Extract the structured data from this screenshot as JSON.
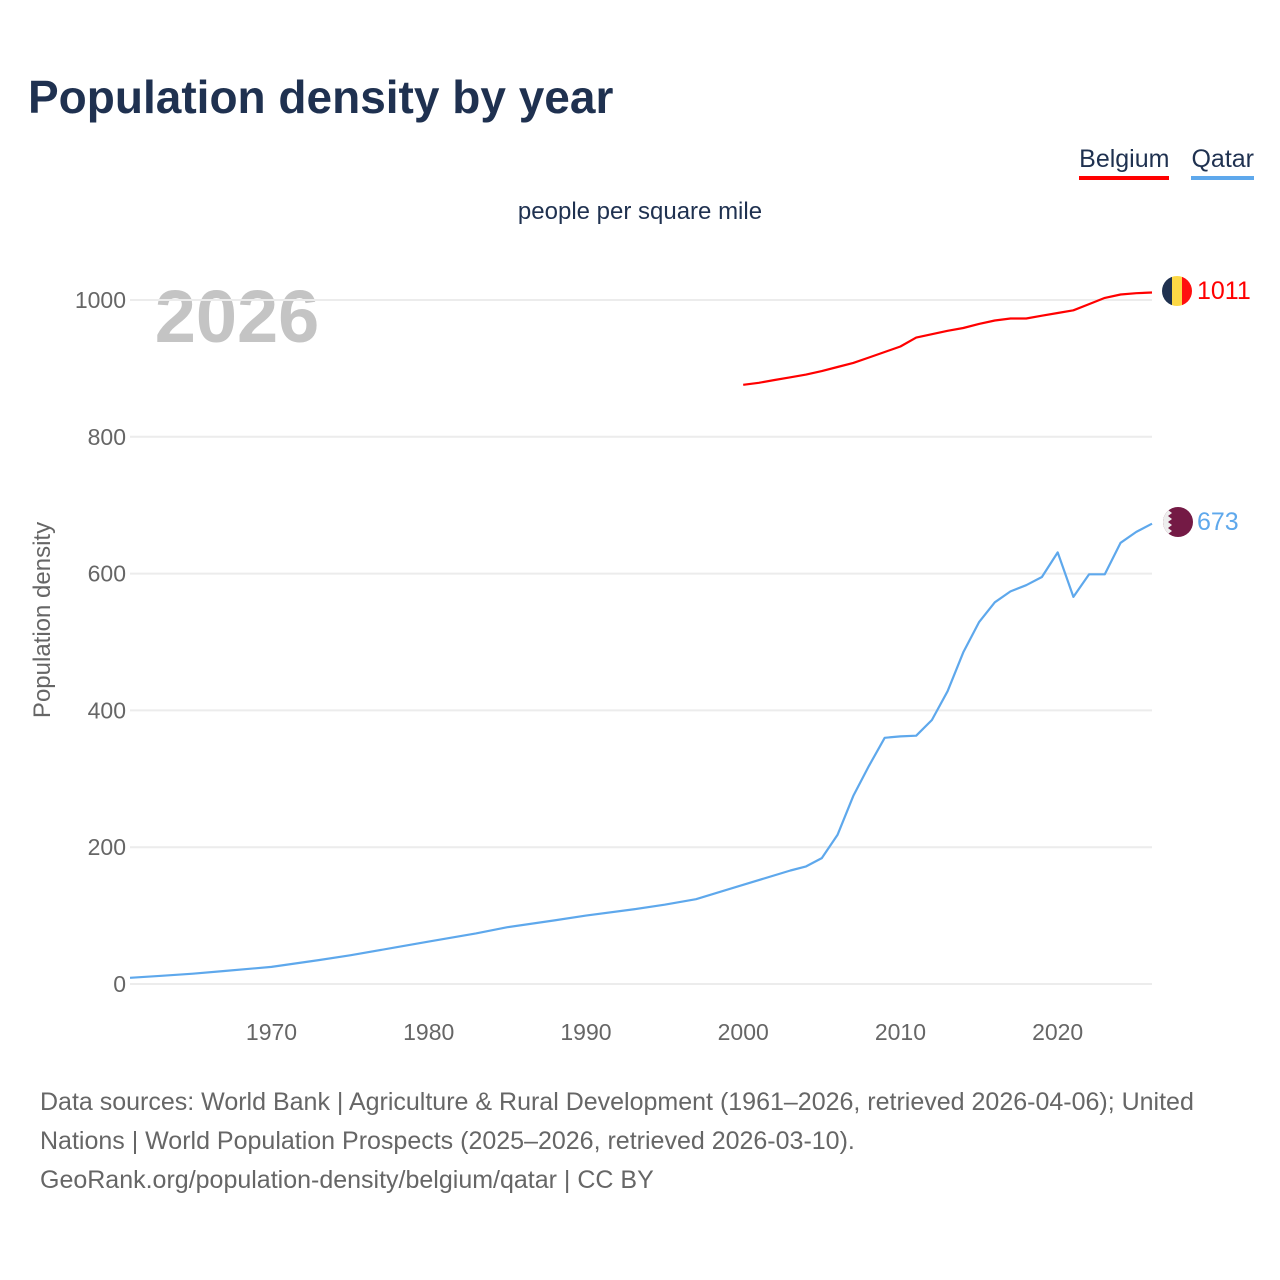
{
  "title": "Population density by year",
  "subtitle": "people per square mile",
  "year_watermark": "2026",
  "footer": {
    "sources": "Data sources: World Bank | Agriculture & Rural Development (1961–2026, retrieved 2026-04-06); United Nations | World Population Prospects (2025–2026, retrieved 2026-03-10).",
    "link": "GeoRank.org/population-density/belgium/qatar | CC BY"
  },
  "chart_data": {
    "type": "line",
    "title": "Population density by year",
    "subtitle": "people per square mile",
    "xlabel": "",
    "ylabel": "Population density",
    "xlim": [
      1961,
      2026
    ],
    "ylim": [
      0,
      1000
    ],
    "xticks": [
      1970,
      1980,
      1990,
      2000,
      2010,
      2020
    ],
    "yticks": [
      0,
      200,
      400,
      600,
      800,
      1000
    ],
    "grid": true,
    "legend": "top-right",
    "series": [
      {
        "name": "Belgium",
        "color": "#ff0000",
        "end_label": "1011",
        "x": [
          2000,
          2001,
          2002,
          2003,
          2004,
          2005,
          2006,
          2007,
          2008,
          2009,
          2010,
          2011,
          2012,
          2013,
          2014,
          2015,
          2016,
          2017,
          2018,
          2019,
          2020,
          2021,
          2022,
          2023,
          2024,
          2025,
          2026
        ],
        "values": [
          876,
          879,
          883,
          887,
          891,
          896,
          902,
          908,
          916,
          924,
          932,
          945,
          950,
          955,
          959,
          965,
          970,
          973,
          973,
          977,
          981,
          985,
          994,
          1003,
          1008,
          1010,
          1011
        ]
      },
      {
        "name": "Qatar",
        "color": "#5ea8ec",
        "end_label": "673",
        "x": [
          1961,
          1963,
          1965,
          1967,
          1970,
          1973,
          1975,
          1978,
          1980,
          1983,
          1985,
          1988,
          1990,
          1993,
          1995,
          1997,
          2000,
          2003,
          2004,
          2005,
          2006,
          2007,
          2008,
          2009,
          2010,
          2011,
          2012,
          2013,
          2014,
          2015,
          2016,
          2017,
          2018,
          2019,
          2020,
          2021,
          2022,
          2023,
          2024,
          2025,
          2026
        ],
        "values": [
          9,
          12,
          15,
          19,
          25,
          35,
          42,
          54,
          62,
          74,
          83,
          93,
          100,
          109,
          116,
          124,
          145,
          166,
          172,
          184,
          218,
          275,
          319,
          360,
          362,
          363,
          386,
          428,
          485,
          529,
          558,
          574,
          583,
          595,
          631,
          566,
          599,
          599,
          645,
          661,
          673
        ]
      }
    ]
  }
}
